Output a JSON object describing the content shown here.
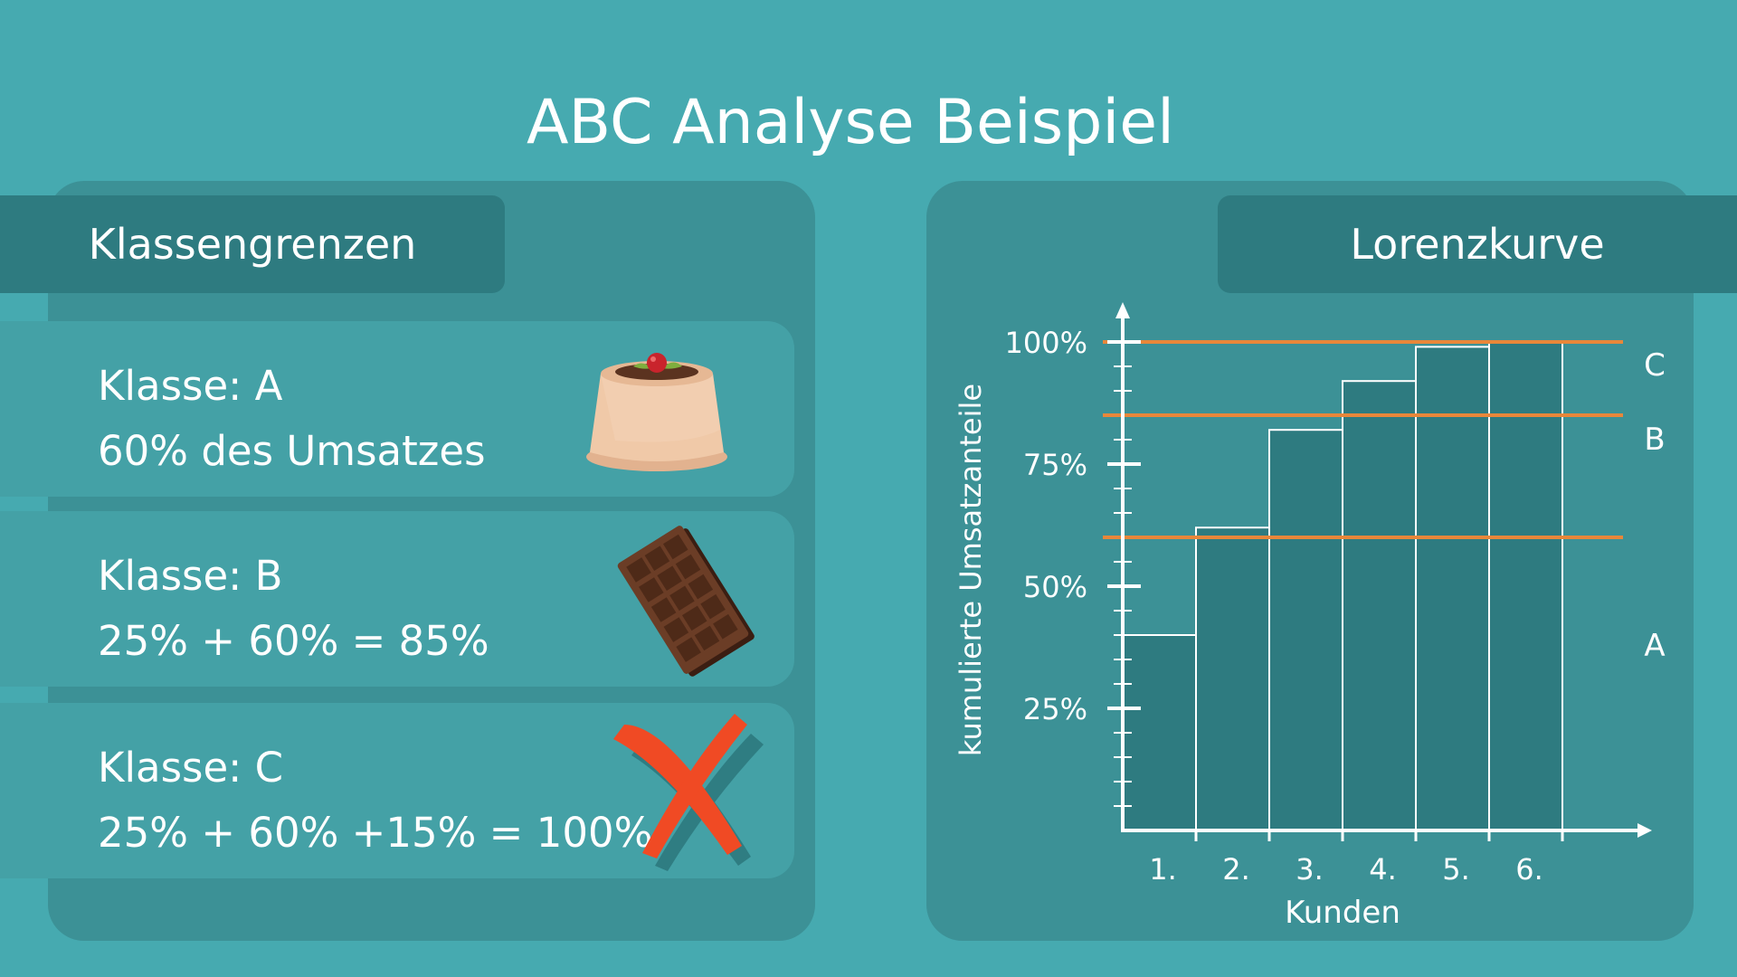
{
  "title": "ABC Analyse Beispiel",
  "left_panel": {
    "heading": "Klassengrenzen",
    "classes": [
      {
        "label": "Klasse: A",
        "detail": "60% des Umsatzes",
        "icon": "pudding-icon"
      },
      {
        "label": "Klasse: B",
        "detail": "25% + 60% = 85%",
        "icon": "chocolate-bar-icon"
      },
      {
        "label": "Klasse: C",
        "detail": "25% + 60% +15% = 100%",
        "icon": "red-cross-icon"
      }
    ]
  },
  "right_panel": {
    "heading": "Lorenzkurve"
  },
  "chart_data": {
    "type": "bar",
    "title": "",
    "xlabel": "Kunden",
    "ylabel": "kumulierte Umsatzanteile",
    "categories": [
      "1.",
      "2.",
      "3.",
      "4.",
      "5.",
      "6."
    ],
    "values": [
      40,
      62,
      82,
      92,
      99,
      100
    ],
    "ylim": [
      0,
      100
    ],
    "yticks": [
      "25%",
      "50%",
      "75%",
      "100%"
    ],
    "ytick_values": [
      25,
      50,
      75,
      100
    ],
    "thresholds": [
      {
        "value": 60,
        "label": "A"
      },
      {
        "value": 85,
        "label": "B"
      },
      {
        "value": 100,
        "label": "C"
      }
    ],
    "colors": {
      "bar": "#2e7b80",
      "bar_edge": "#ffffff",
      "threshold": "#e8873a",
      "axis": "#ffffff"
    }
  }
}
